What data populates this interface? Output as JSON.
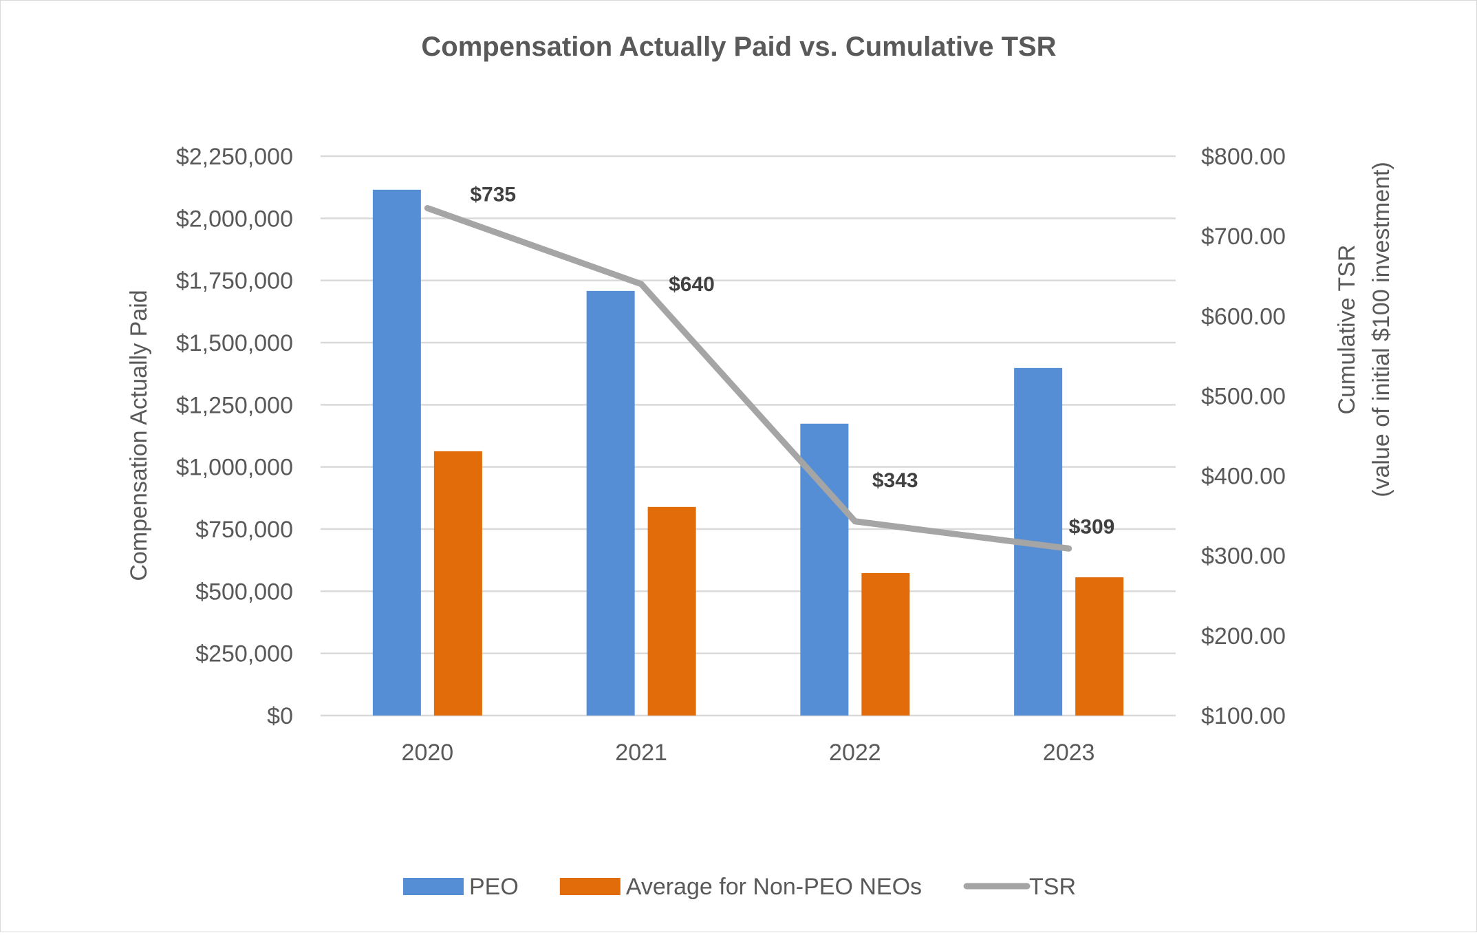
{
  "chart_data": {
    "type": "bar",
    "title": "Compensation Actually Paid vs. Cumulative TSR",
    "categories": [
      "2020",
      "2021",
      "2022",
      "2023"
    ],
    "xlabel": "",
    "ylabel": "Compensation Actually Paid",
    "ylabel_right_line1": "Cumulative TSR",
    "ylabel_right_line2": "(value of initial $100 investment)",
    "ylim": [
      0,
      2250000
    ],
    "ylim_right": [
      100,
      800
    ],
    "yticks": [
      0,
      250000,
      500000,
      750000,
      1000000,
      1250000,
      1500000,
      1750000,
      2000000,
      2250000
    ],
    "ytick_labels": [
      "$0",
      "$250,000",
      "$500,000",
      "$750,000",
      "$1,000,000",
      "$1,250,000",
      "$1,500,000",
      "$1,750,000",
      "$2,000,000",
      "$2,250,000"
    ],
    "yticks_right": [
      100,
      200,
      300,
      400,
      500,
      600,
      700,
      800
    ],
    "ytick_labels_right": [
      "$100.00",
      "$200.00",
      "$300.00",
      "$400.00",
      "$500.00",
      "$600.00",
      "$700.00",
      "$800.00"
    ],
    "grid": true,
    "legend_position": "bottom",
    "series": [
      {
        "name": "PEO",
        "type": "bar",
        "axis": "left",
        "color": "#558ED5",
        "values": [
          2115000,
          1708000,
          1174000,
          1398000
        ]
      },
      {
        "name": "Average for Non-PEO NEOs",
        "type": "bar",
        "axis": "left",
        "color": "#E36C0A",
        "values": [
          1063000,
          839000,
          573000,
          556000
        ]
      },
      {
        "name": "TSR",
        "type": "line",
        "axis": "right",
        "color": "#A5A5A5",
        "values": [
          735,
          640,
          343,
          309
        ],
        "data_labels": [
          "$735",
          "$640",
          "$343",
          "$309"
        ]
      }
    ]
  },
  "colors": {
    "text": "#595959",
    "title": "#595959",
    "data_label": "#404040",
    "grid": "#d9d9d9"
  }
}
